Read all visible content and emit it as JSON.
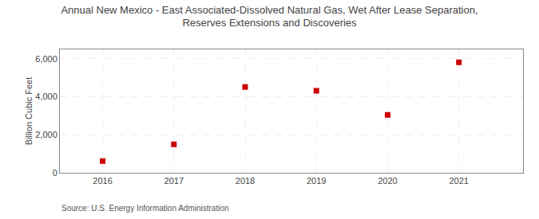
{
  "chart_data": {
    "type": "scatter",
    "title": "Annual New Mexico - East Associated-Dissolved Natural Gas, Wet After Lease Separation,\nReserves Extensions and Discoveries",
    "ylabel": "Billion Cubic Feet",
    "annotations": [
      "Source: U.S. Energy Information Administration"
    ],
    "x": [
      2016,
      2017,
      2018,
      2019,
      2020,
      2021
    ],
    "values": [
      620,
      1500,
      4520,
      4320,
      3050,
      5820
    ],
    "xlim": [
      2015.4,
      2021.9
    ],
    "xticks": [
      2016,
      2017,
      2018,
      2019,
      2020,
      2021
    ],
    "ylim": [
      0,
      6500
    ],
    "yticks": [
      0,
      {
        "value": 2000,
        "label": "2,000"
      },
      {
        "value": 4000,
        "label": "4,000"
      },
      {
        "value": 6000,
        "label": "6,000"
      }
    ],
    "color": "#cc0000",
    "marker": "square",
    "grid": true
  }
}
